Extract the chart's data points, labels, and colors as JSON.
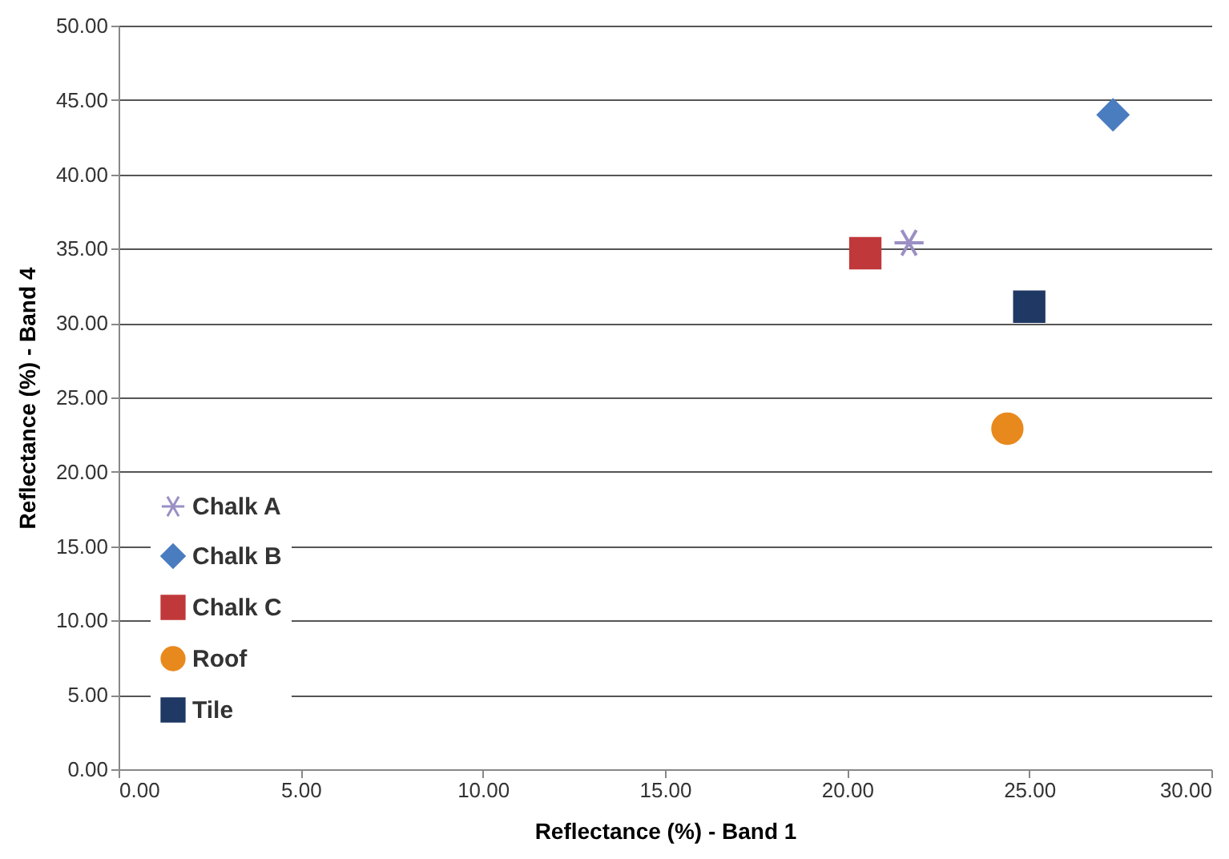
{
  "chart_data": {
    "type": "scatter",
    "xlabel": "Reflectance (%) - Band 1",
    "ylabel": "Reflectance (%) - Band 4",
    "xlim": [
      0,
      30
    ],
    "ylim": [
      0,
      50
    ],
    "xticks": [
      {
        "value": 0,
        "label": "0.00"
      },
      {
        "value": 5,
        "label": "5.00"
      },
      {
        "value": 10,
        "label": "10.00"
      },
      {
        "value": 15,
        "label": "15.00"
      },
      {
        "value": 20,
        "label": "20.00"
      },
      {
        "value": 25,
        "label": "25.00"
      },
      {
        "value": 30,
        "label": "30.00"
      }
    ],
    "yticks": [
      {
        "value": 0,
        "label": "0.00"
      },
      {
        "value": 5,
        "label": "5.00"
      },
      {
        "value": 10,
        "label": "10.00"
      },
      {
        "value": 15,
        "label": "15.00"
      },
      {
        "value": 20,
        "label": "20.00"
      },
      {
        "value": 25,
        "label": "25.00"
      },
      {
        "value": 30,
        "label": "30.00"
      },
      {
        "value": 35,
        "label": "35.00"
      },
      {
        "value": 40,
        "label": "40.00"
      },
      {
        "value": 45,
        "label": "45.00"
      },
      {
        "value": 50,
        "label": "50.00"
      }
    ],
    "grid": "y",
    "legend": "bottom left",
    "series": [
      {
        "name": "Chalk A",
        "color": "#9b8fc4",
        "marker": "cross",
        "x": [
          21.7
        ],
        "values": [
          35.4
        ]
      },
      {
        "name": "Chalk B",
        "color": "#4a7cc0",
        "marker": "diamond",
        "x": [
          27.3
        ],
        "values": [
          44.0
        ]
      },
      {
        "name": "Chalk C",
        "color": "#c0383a",
        "marker": "square",
        "x": [
          20.5
        ],
        "values": [
          34.7
        ]
      },
      {
        "name": "Roof",
        "color": "#e8891e",
        "marker": "circle",
        "x": [
          24.4
        ],
        "values": [
          22.9
        ]
      },
      {
        "name": "Tile",
        "color": "#1f3864",
        "marker": "square",
        "x": [
          25.0
        ],
        "values": [
          31.1
        ]
      }
    ]
  }
}
